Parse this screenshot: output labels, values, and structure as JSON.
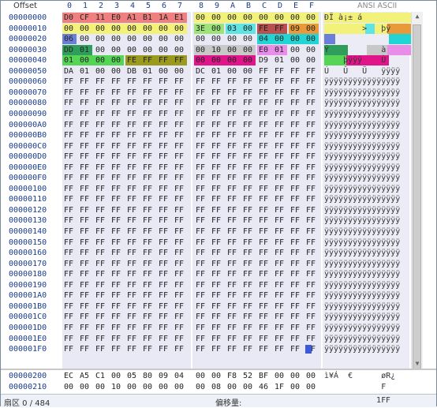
{
  "header": {
    "offset_label": "Offset",
    "columns": [
      "0",
      "1",
      "2",
      "3",
      "4",
      "5",
      "6",
      "7",
      "8",
      "9",
      "A",
      "B",
      "C",
      "D",
      "E",
      "F"
    ],
    "ascii_label": "ANSI ASCII"
  },
  "rows": [
    {
      "offset": "00000000",
      "bytes": [
        "D0",
        "CF",
        "11",
        "E0",
        "A1",
        "B1",
        "1A",
        "E1",
        "00",
        "00",
        "00",
        "00",
        "00",
        "00",
        "00",
        "00"
      ],
      "ascii": "ÐÏ à¡± á"
    },
    {
      "offset": "00000010",
      "bytes": [
        "00",
        "00",
        "00",
        "00",
        "00",
        "00",
        "00",
        "00",
        "3E",
        "00",
        "03",
        "00",
        "FE",
        "FF",
        "09",
        "00"
      ],
      "ascii": "        >   þÿ  "
    },
    {
      "offset": "00000020",
      "bytes": [
        "06",
        "00",
        "00",
        "00",
        "00",
        "00",
        "00",
        "00",
        "00",
        "00",
        "00",
        "00",
        "04",
        "00",
        "00",
        "00"
      ],
      "ascii": ""
    },
    {
      "offset": "00000030",
      "bytes": [
        "DD",
        "01",
        "00",
        "00",
        "00",
        "00",
        "00",
        "00",
        "00",
        "10",
        "00",
        "00",
        "E0",
        "01",
        "00",
        "00"
      ],
      "ascii": "Ý           à   "
    },
    {
      "offset": "00000040",
      "bytes": [
        "01",
        "00",
        "00",
        "00",
        "FE",
        "FF",
        "FF",
        "FF",
        "00",
        "00",
        "00",
        "00",
        "D9",
        "01",
        "00",
        "00"
      ],
      "ascii": "    þÿÿÿ    Ù   "
    },
    {
      "offset": "00000050",
      "bytes": [
        "DA",
        "01",
        "00",
        "00",
        "DB",
        "01",
        "00",
        "00",
        "DC",
        "01",
        "00",
        "00",
        "FF",
        "FF",
        "FF",
        "FF"
      ],
      "ascii": "Ú   Û   Ü   ÿÿÿÿ"
    },
    {
      "offset": "00000060",
      "bytes": [
        "FF",
        "FF",
        "FF",
        "FF",
        "FF",
        "FF",
        "FF",
        "FF",
        "FF",
        "FF",
        "FF",
        "FF",
        "FF",
        "FF",
        "FF",
        "FF"
      ],
      "ascii": "ÿÿÿÿÿÿÿÿÿÿÿÿÿÿÿÿ"
    },
    {
      "offset": "00000070",
      "bytes": [
        "FF",
        "FF",
        "FF",
        "FF",
        "FF",
        "FF",
        "FF",
        "FF",
        "FF",
        "FF",
        "FF",
        "FF",
        "FF",
        "FF",
        "FF",
        "FF"
      ],
      "ascii": "ÿÿÿÿÿÿÿÿÿÿÿÿÿÿÿÿ"
    },
    {
      "offset": "00000080",
      "bytes": [
        "FF",
        "FF",
        "FF",
        "FF",
        "FF",
        "FF",
        "FF",
        "FF",
        "FF",
        "FF",
        "FF",
        "FF",
        "FF",
        "FF",
        "FF",
        "FF"
      ],
      "ascii": "ÿÿÿÿÿÿÿÿÿÿÿÿÿÿÿÿ"
    },
    {
      "offset": "00000090",
      "bytes": [
        "FF",
        "FF",
        "FF",
        "FF",
        "FF",
        "FF",
        "FF",
        "FF",
        "FF",
        "FF",
        "FF",
        "FF",
        "FF",
        "FF",
        "FF",
        "FF"
      ],
      "ascii": "ÿÿÿÿÿÿÿÿÿÿÿÿÿÿÿÿ"
    },
    {
      "offset": "000000A0",
      "bytes": [
        "FF",
        "FF",
        "FF",
        "FF",
        "FF",
        "FF",
        "FF",
        "FF",
        "FF",
        "FF",
        "FF",
        "FF",
        "FF",
        "FF",
        "FF",
        "FF"
      ],
      "ascii": "ÿÿÿÿÿÿÿÿÿÿÿÿÿÿÿÿ"
    },
    {
      "offset": "000000B0",
      "bytes": [
        "FF",
        "FF",
        "FF",
        "FF",
        "FF",
        "FF",
        "FF",
        "FF",
        "FF",
        "FF",
        "FF",
        "FF",
        "FF",
        "FF",
        "FF",
        "FF"
      ],
      "ascii": "ÿÿÿÿÿÿÿÿÿÿÿÿÿÿÿÿ"
    },
    {
      "offset": "000000C0",
      "bytes": [
        "FF",
        "FF",
        "FF",
        "FF",
        "FF",
        "FF",
        "FF",
        "FF",
        "FF",
        "FF",
        "FF",
        "FF",
        "FF",
        "FF",
        "FF",
        "FF"
      ],
      "ascii": "ÿÿÿÿÿÿÿÿÿÿÿÿÿÿÿÿ"
    },
    {
      "offset": "000000D0",
      "bytes": [
        "FF",
        "FF",
        "FF",
        "FF",
        "FF",
        "FF",
        "FF",
        "FF",
        "FF",
        "FF",
        "FF",
        "FF",
        "FF",
        "FF",
        "FF",
        "FF"
      ],
      "ascii": "ÿÿÿÿÿÿÿÿÿÿÿÿÿÿÿÿ"
    },
    {
      "offset": "000000E0",
      "bytes": [
        "FF",
        "FF",
        "FF",
        "FF",
        "FF",
        "FF",
        "FF",
        "FF",
        "FF",
        "FF",
        "FF",
        "FF",
        "FF",
        "FF",
        "FF",
        "FF"
      ],
      "ascii": "ÿÿÿÿÿÿÿÿÿÿÿÿÿÿÿÿ"
    },
    {
      "offset": "000000F0",
      "bytes": [
        "FF",
        "FF",
        "FF",
        "FF",
        "FF",
        "FF",
        "FF",
        "FF",
        "FF",
        "FF",
        "FF",
        "FF",
        "FF",
        "FF",
        "FF",
        "FF"
      ],
      "ascii": "ÿÿÿÿÿÿÿÿÿÿÿÿÿÿÿÿ"
    },
    {
      "offset": "00000100",
      "bytes": [
        "FF",
        "FF",
        "FF",
        "FF",
        "FF",
        "FF",
        "FF",
        "FF",
        "FF",
        "FF",
        "FF",
        "FF",
        "FF",
        "FF",
        "FF",
        "FF"
      ],
      "ascii": "ÿÿÿÿÿÿÿÿÿÿÿÿÿÿÿÿ"
    },
    {
      "offset": "00000110",
      "bytes": [
        "FF",
        "FF",
        "FF",
        "FF",
        "FF",
        "FF",
        "FF",
        "FF",
        "FF",
        "FF",
        "FF",
        "FF",
        "FF",
        "FF",
        "FF",
        "FF"
      ],
      "ascii": "ÿÿÿÿÿÿÿÿÿÿÿÿÿÿÿÿ"
    },
    {
      "offset": "00000120",
      "bytes": [
        "FF",
        "FF",
        "FF",
        "FF",
        "FF",
        "FF",
        "FF",
        "FF",
        "FF",
        "FF",
        "FF",
        "FF",
        "FF",
        "FF",
        "FF",
        "FF"
      ],
      "ascii": "ÿÿÿÿÿÿÿÿÿÿÿÿÿÿÿÿ"
    },
    {
      "offset": "00000130",
      "bytes": [
        "FF",
        "FF",
        "FF",
        "FF",
        "FF",
        "FF",
        "FF",
        "FF",
        "FF",
        "FF",
        "FF",
        "FF",
        "FF",
        "FF",
        "FF",
        "FF"
      ],
      "ascii": "ÿÿÿÿÿÿÿÿÿÿÿÿÿÿÿÿ"
    },
    {
      "offset": "00000140",
      "bytes": [
        "FF",
        "FF",
        "FF",
        "FF",
        "FF",
        "FF",
        "FF",
        "FF",
        "FF",
        "FF",
        "FF",
        "FF",
        "FF",
        "FF",
        "FF",
        "FF"
      ],
      "ascii": "ÿÿÿÿÿÿÿÿÿÿÿÿÿÿÿÿ"
    },
    {
      "offset": "00000150",
      "bytes": [
        "FF",
        "FF",
        "FF",
        "FF",
        "FF",
        "FF",
        "FF",
        "FF",
        "FF",
        "FF",
        "FF",
        "FF",
        "FF",
        "FF",
        "FF",
        "FF"
      ],
      "ascii": "ÿÿÿÿÿÿÿÿÿÿÿÿÿÿÿÿ"
    },
    {
      "offset": "00000160",
      "bytes": [
        "FF",
        "FF",
        "FF",
        "FF",
        "FF",
        "FF",
        "FF",
        "FF",
        "FF",
        "FF",
        "FF",
        "FF",
        "FF",
        "FF",
        "FF",
        "FF"
      ],
      "ascii": "ÿÿÿÿÿÿÿÿÿÿÿÿÿÿÿÿ"
    },
    {
      "offset": "00000170",
      "bytes": [
        "FF",
        "FF",
        "FF",
        "FF",
        "FF",
        "FF",
        "FF",
        "FF",
        "FF",
        "FF",
        "FF",
        "FF",
        "FF",
        "FF",
        "FF",
        "FF"
      ],
      "ascii": "ÿÿÿÿÿÿÿÿÿÿÿÿÿÿÿÿ"
    },
    {
      "offset": "00000180",
      "bytes": [
        "FF",
        "FF",
        "FF",
        "FF",
        "FF",
        "FF",
        "FF",
        "FF",
        "FF",
        "FF",
        "FF",
        "FF",
        "FF",
        "FF",
        "FF",
        "FF"
      ],
      "ascii": "ÿÿÿÿÿÿÿÿÿÿÿÿÿÿÿÿ"
    },
    {
      "offset": "00000190",
      "bytes": [
        "FF",
        "FF",
        "FF",
        "FF",
        "FF",
        "FF",
        "FF",
        "FF",
        "FF",
        "FF",
        "FF",
        "FF",
        "FF",
        "FF",
        "FF",
        "FF"
      ],
      "ascii": "ÿÿÿÿÿÿÿÿÿÿÿÿÿÿÿÿ"
    },
    {
      "offset": "000001A0",
      "bytes": [
        "FF",
        "FF",
        "FF",
        "FF",
        "FF",
        "FF",
        "FF",
        "FF",
        "FF",
        "FF",
        "FF",
        "FF",
        "FF",
        "FF",
        "FF",
        "FF"
      ],
      "ascii": "ÿÿÿÿÿÿÿÿÿÿÿÿÿÿÿÿ"
    },
    {
      "offset": "000001B0",
      "bytes": [
        "FF",
        "FF",
        "FF",
        "FF",
        "FF",
        "FF",
        "FF",
        "FF",
        "FF",
        "FF",
        "FF",
        "FF",
        "FF",
        "FF",
        "FF",
        "FF"
      ],
      "ascii": "ÿÿÿÿÿÿÿÿÿÿÿÿÿÿÿÿ"
    },
    {
      "offset": "000001C0",
      "bytes": [
        "FF",
        "FF",
        "FF",
        "FF",
        "FF",
        "FF",
        "FF",
        "FF",
        "FF",
        "FF",
        "FF",
        "FF",
        "FF",
        "FF",
        "FF",
        "FF"
      ],
      "ascii": "ÿÿÿÿÿÿÿÿÿÿÿÿÿÿÿÿ"
    },
    {
      "offset": "000001D0",
      "bytes": [
        "FF",
        "FF",
        "FF",
        "FF",
        "FF",
        "FF",
        "FF",
        "FF",
        "FF",
        "FF",
        "FF",
        "FF",
        "FF",
        "FF",
        "FF",
        "FF"
      ],
      "ascii": "ÿÿÿÿÿÿÿÿÿÿÿÿÿÿÿÿ"
    },
    {
      "offset": "000001E0",
      "bytes": [
        "FF",
        "FF",
        "FF",
        "FF",
        "FF",
        "FF",
        "FF",
        "FF",
        "FF",
        "FF",
        "FF",
        "FF",
        "FF",
        "FF",
        "FF",
        "FF"
      ],
      "ascii": "ÿÿÿÿÿÿÿÿÿÿÿÿÿÿÿÿ"
    },
    {
      "offset": "000001F0",
      "bytes": [
        "FF",
        "FF",
        "FF",
        "FF",
        "FF",
        "FF",
        "FF",
        "FF",
        "FF",
        "FF",
        "FF",
        "FF",
        "FF",
        "FF",
        "FF",
        "FF"
      ],
      "ascii": "ÿÿÿÿÿÿÿÿÿÿÿÿÿÿÿÿ"
    }
  ],
  "tail_rows": [
    {
      "offset": "00000200",
      "bytes": [
        "EC",
        "A5",
        "C1",
        "00",
        "05",
        "80",
        "09",
        "04",
        "00",
        "00",
        "F8",
        "52",
        "BF",
        "00",
        "00",
        "00"
      ],
      "ascii": "ì¥Á  €      øR¿"
    },
    {
      "offset": "00000210",
      "bytes": [
        "00",
        "00",
        "00",
        "10",
        "00",
        "00",
        "00",
        "00",
        "00",
        "08",
        "00",
        "00",
        "46",
        "1F",
        "00",
        "00"
      ],
      "ascii": "            F   "
    }
  ],
  "status": {
    "sector_label": "扇区 0 / 484",
    "offset_label": "偏移量:",
    "offset_value": "1FF"
  }
}
